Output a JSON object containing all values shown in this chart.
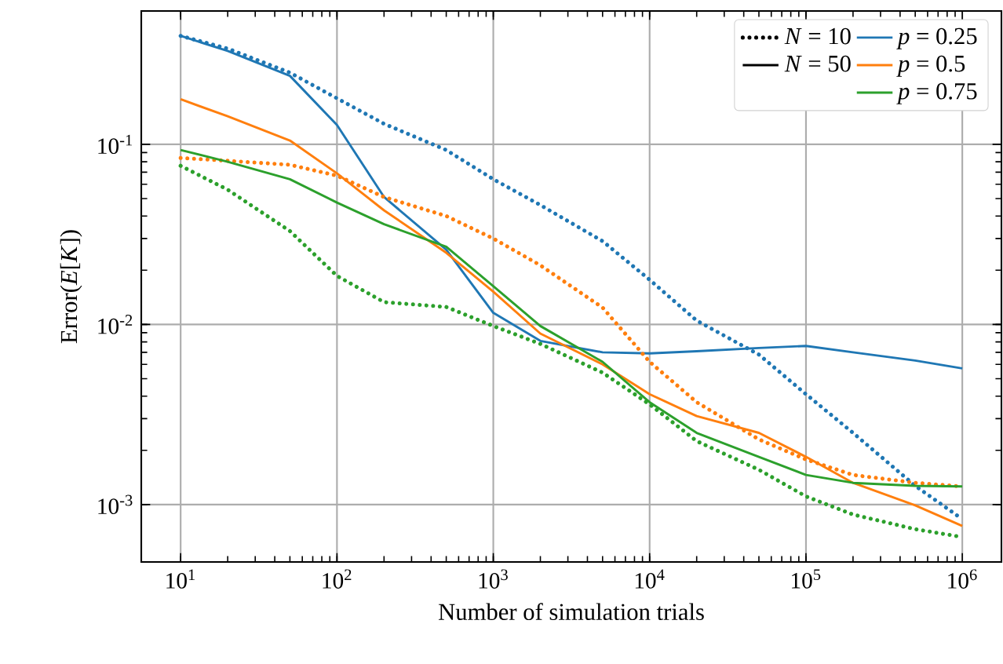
{
  "chart_data": {
    "type": "line",
    "xlabel": "Number of simulation trials",
    "ylabel": "Error(*E*[*K*])",
    "log": "xy",
    "grid": true,
    "legend": "top right",
    "xlim": [
      5.6,
      1780000
    ],
    "ylim": [
      0.00048,
      0.55
    ],
    "xticks": [
      {
        "value": 10,
        "label": "10$^{1}$"
      },
      {
        "value": 100,
        "label": "10$^{2}$"
      },
      {
        "value": 1000,
        "label": "10$^{3}$"
      },
      {
        "value": 10000,
        "label": "10$^{4}$"
      },
      {
        "value": 100000,
        "label": "10$^{5}$"
      },
      {
        "value": 1000000,
        "label": "10$^{6}$"
      }
    ],
    "yticks": [
      {
        "value": 0.001,
        "label": "10$^{-3}$"
      },
      {
        "value": 0.01,
        "label": "10$^{-2}$"
      },
      {
        "value": 0.1,
        "label": "10$^{-1}$"
      }
    ],
    "x": [
      10,
      20,
      50,
      100,
      200,
      500,
      1000,
      2000,
      5000,
      10000,
      20000,
      50000,
      100000,
      200000,
      500000,
      1000000
    ],
    "series": [
      {
        "name": "*N* = 10",
        "color": "#000000",
        "line_style": "dotted",
        "values": [
          null,
          null,
          null,
          null,
          null,
          null,
          null,
          null,
          null,
          null,
          null,
          null,
          null,
          null,
          null,
          null
        ]
      },
      {
        "name": "*N* = 50",
        "color": "#000000",
        "line_style": "solid",
        "values": [
          null,
          null,
          null,
          null,
          null,
          null,
          null,
          null,
          null,
          null,
          null,
          null,
          null,
          null,
          null,
          null
        ]
      },
      {
        "color": "#1f77b4",
        "line_style": "dotted",
        "values": [
          0.4,
          0.34,
          0.25,
          0.18,
          0.13,
          0.093,
          0.064,
          0.046,
          0.029,
          0.0177,
          0.0105,
          0.0068,
          0.0041,
          0.0025,
          0.00127,
          0.00083
        ]
      },
      {
        "name": "*p* = 0.25",
        "color": "#1f77b4",
        "line_style": "solid",
        "values": [
          0.4,
          0.33,
          0.24,
          0.128,
          0.051,
          0.026,
          0.0116,
          0.0081,
          0.007,
          0.0069,
          0.0071,
          0.0074,
          0.0076,
          0.007,
          0.0063,
          0.0057
        ]
      },
      {
        "color": "#ff7f0e",
        "line_style": "dotted",
        "values": [
          0.084,
          0.081,
          0.077,
          0.067,
          0.051,
          0.04,
          0.03,
          0.0213,
          0.0124,
          0.0062,
          0.0037,
          0.0023,
          0.00178,
          0.00146,
          0.00132,
          0.00126
        ]
      },
      {
        "name": "*p* = 0.5",
        "color": "#ff7f0e",
        "line_style": "solid",
        "values": [
          0.178,
          0.143,
          0.105,
          0.069,
          0.043,
          0.025,
          0.0152,
          0.0089,
          0.006,
          0.0041,
          0.0031,
          0.0025,
          0.00184,
          0.00132,
          0.00099,
          0.00076
        ]
      },
      {
        "color": "#2ca02c",
        "line_style": "dotted",
        "values": [
          0.076,
          0.056,
          0.033,
          0.0186,
          0.0133,
          0.0125,
          0.0098,
          0.0078,
          0.0054,
          0.0036,
          0.00225,
          0.00156,
          0.00111,
          0.00088,
          0.00073,
          0.00066
        ]
      },
      {
        "name": "*p* = 0.75",
        "color": "#2ca02c",
        "line_style": "solid",
        "values": [
          0.093,
          0.08,
          0.064,
          0.0475,
          0.036,
          0.027,
          0.0163,
          0.0098,
          0.0062,
          0.0037,
          0.0025,
          0.00184,
          0.00146,
          0.00132,
          0.00127,
          0.00126
        ]
      }
    ]
  }
}
